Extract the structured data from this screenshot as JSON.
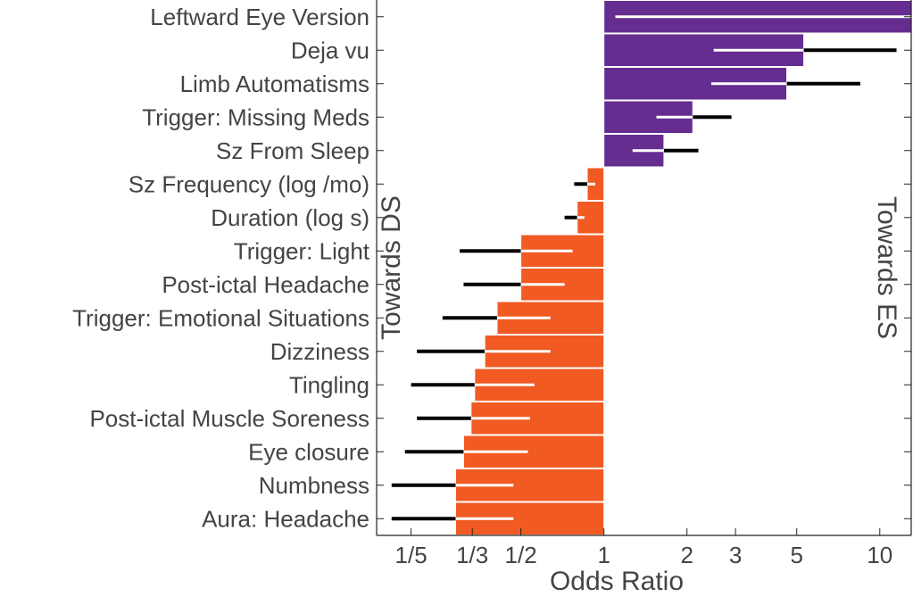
{
  "chart_data": {
    "type": "bar",
    "orientation": "horizontal",
    "scale": "log",
    "baseline": 1,
    "xlabel": "Odds Ratio",
    "left_annotation": "Towards DS",
    "right_annotation": "Towards ES",
    "xlim": [
      0.15,
      13
    ],
    "x_ticks": [
      {
        "value": 0.2,
        "label": "1/5"
      },
      {
        "value": 0.3333,
        "label": "1/3"
      },
      {
        "value": 0.5,
        "label": "1/2"
      },
      {
        "value": 1,
        "label": "1"
      },
      {
        "value": 2,
        "label": "2"
      },
      {
        "value": 3,
        "label": "3"
      },
      {
        "value": 5,
        "label": "5"
      },
      {
        "value": 10,
        "label": "10"
      }
    ],
    "colors": {
      "towards_es": "#662d91",
      "towards_ds": "#f15a22"
    },
    "rows": [
      {
        "label": "Leftward Eye Version",
        "value": 13,
        "ci": [
          1.1,
          13
        ]
      },
      {
        "label": "Deja vu",
        "value": 5.3,
        "ci": [
          2.5,
          11.5
        ]
      },
      {
        "label": "Limb Automatisms",
        "value": 4.6,
        "ci": [
          2.45,
          8.5
        ]
      },
      {
        "label": "Trigger: Missing Meds",
        "value": 2.1,
        "ci": [
          1.55,
          2.9
        ]
      },
      {
        "label": "Sz From Sleep",
        "value": 1.65,
        "ci": [
          1.27,
          2.2
        ]
      },
      {
        "label": "Sz Frequency (log /mo)",
        "value": 0.87,
        "ci": [
          0.78,
          0.93
        ]
      },
      {
        "label": "Duration (log s)",
        "value": 0.8,
        "ci": [
          0.72,
          0.85
        ]
      },
      {
        "label": "Trigger: Light",
        "value": 0.5,
        "ci": [
          0.3,
          0.77
        ]
      },
      {
        "label": "Post-ictal Headache",
        "value": 0.5,
        "ci": [
          0.31,
          0.72
        ]
      },
      {
        "label": "Trigger: Emotional Situations",
        "value": 0.41,
        "ci": [
          0.26,
          0.64
        ]
      },
      {
        "label": "Dizziness",
        "value": 0.37,
        "ci": [
          0.21,
          0.64
        ]
      },
      {
        "label": "Tingling",
        "value": 0.34,
        "ci": [
          0.2,
          0.56
        ]
      },
      {
        "label": "Post-ictal Muscle Soreness",
        "value": 0.33,
        "ci": [
          0.21,
          0.54
        ]
      },
      {
        "label": "Eye closure",
        "value": 0.31,
        "ci": [
          0.19,
          0.53
        ]
      },
      {
        "label": "Numbness",
        "value": 0.29,
        "ci": [
          0.17,
          0.47
        ]
      },
      {
        "label": "Aura: Headache",
        "value": 0.29,
        "ci": [
          0.17,
          0.47
        ]
      }
    ]
  }
}
